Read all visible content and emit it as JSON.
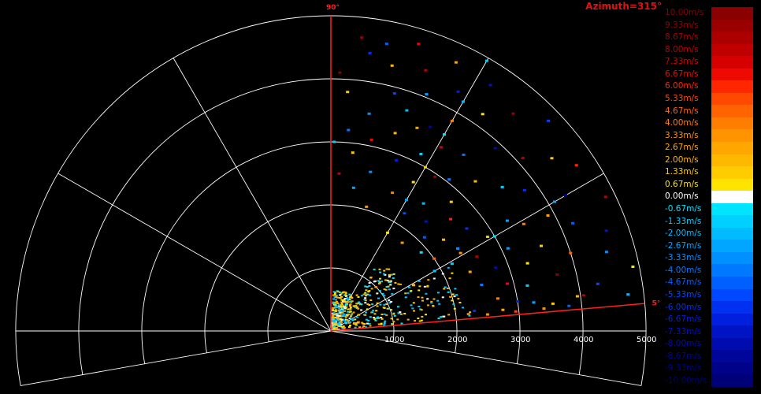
{
  "title": "Azimuth=315°",
  "chart_data": {
    "type": "polar-scatter",
    "quantity": "radial velocity",
    "range_ticks": [
      1000,
      2000,
      3000,
      4000,
      5000
    ],
    "range_max": 5000,
    "angle_marks": [
      {
        "angle": 90,
        "label": "90°"
      },
      {
        "angle": 5,
        "label": "5°"
      }
    ],
    "sector_deg": [
      5,
      90
    ],
    "colorbar": [
      {
        "label": "10.00m/s",
        "value": 10.0,
        "color": "#8b0000"
      },
      {
        "label": "9.33m/s",
        "value": 9.33,
        "color": "#9b0000"
      },
      {
        "label": "8.67m/s",
        "value": 8.67,
        "color": "#ac0000"
      },
      {
        "label": "8.00m/s",
        "value": 8.0,
        "color": "#c00000"
      },
      {
        "label": "7.33m/s",
        "value": 7.33,
        "color": "#d70000"
      },
      {
        "label": "6.67m/s",
        "value": 6.67,
        "color": "#ee0a00"
      },
      {
        "label": "6.00m/s",
        "value": 6.0,
        "color": "#ff2600"
      },
      {
        "label": "5.33m/s",
        "value": 5.33,
        "color": "#ff4800"
      },
      {
        "label": "4.67m/s",
        "value": 4.67,
        "color": "#ff6400"
      },
      {
        "label": "4.00m/s",
        "value": 4.0,
        "color": "#ff7e00"
      },
      {
        "label": "3.33m/s",
        "value": 3.33,
        "color": "#ff9400"
      },
      {
        "label": "2.67m/s",
        "value": 2.67,
        "color": "#ffa600"
      },
      {
        "label": "2.00m/s",
        "value": 2.0,
        "color": "#ffb800"
      },
      {
        "label": "1.33m/s",
        "value": 1.33,
        "color": "#ffcc00"
      },
      {
        "label": "0.67m/s",
        "value": 0.67,
        "color": "#ffe400"
      },
      {
        "label": "0.00m/s",
        "value": 0.0,
        "color": "#ffffff"
      },
      {
        "label": "-0.67m/s",
        "value": -0.67,
        "color": "#00e4ff"
      },
      {
        "label": "-1.33m/s",
        "value": -1.33,
        "color": "#00d0ff"
      },
      {
        "label": "-2.00m/s",
        "value": -2.0,
        "color": "#00bcff"
      },
      {
        "label": "-2.67m/s",
        "value": -2.67,
        "color": "#00a6ff"
      },
      {
        "label": "-3.33m/s",
        "value": -3.33,
        "color": "#0090ff"
      },
      {
        "label": "-4.00m/s",
        "value": -4.0,
        "color": "#0078ff"
      },
      {
        "label": "-4.67m/s",
        "value": -4.67,
        "color": "#0060ff"
      },
      {
        "label": "-5.33m/s",
        "value": -5.33,
        "color": "#0048ff"
      },
      {
        "label": "-6.00m/s",
        "value": -6.0,
        "color": "#0030f0"
      },
      {
        "label": "-6.67m/s",
        "value": -6.67,
        "color": "#0020dd"
      },
      {
        "label": "-7.33m/s",
        "value": -7.33,
        "color": "#0014c4"
      },
      {
        "label": "-8.00m/s",
        "value": -8.0,
        "color": "#000cad"
      },
      {
        "label": "-8.67m/s",
        "value": -8.67,
        "color": "#000699"
      },
      {
        "label": "-9.33m/s",
        "value": -9.33,
        "color": "#000388"
      },
      {
        "label": "-10.00m/s",
        "value": -10.0,
        "color": "#000078"
      }
    ],
    "points": [
      {
        "az": 84,
        "r": 4680,
        "v": 9.3
      },
      {
        "az": 82,
        "r": 4450,
        "v": -6.0
      },
      {
        "az": 79,
        "r": 4640,
        "v": -4.7
      },
      {
        "az": 77,
        "r": 4320,
        "v": 2.0
      },
      {
        "az": 73,
        "r": 4760,
        "v": 6.7
      },
      {
        "az": 75,
        "r": 3900,
        "v": -5.3
      },
      {
        "az": 70,
        "r": 4400,
        "v": 8.0
      },
      {
        "az": 68,
        "r": 4050,
        "v": -2.7
      },
      {
        "az": 86,
        "r": 3800,
        "v": 1.3
      },
      {
        "az": 88,
        "r": 4100,
        "v": 10.0
      },
      {
        "az": 80,
        "r": 3500,
        "v": -3.3
      },
      {
        "az": 65,
        "r": 4700,
        "v": 2.7
      },
      {
        "az": 62,
        "r": 4300,
        "v": -6.7
      },
      {
        "az": 60,
        "r": 3850,
        "v": 4.0
      },
      {
        "az": 57,
        "r": 4650,
        "v": -7.3
      },
      {
        "az": 55,
        "r": 4200,
        "v": 0.7
      },
      {
        "az": 53,
        "r": 3500,
        "v": -4.0
      },
      {
        "az": 50,
        "r": 4500,
        "v": 9.3
      },
      {
        "az": 48,
        "r": 3900,
        "v": -8.0
      },
      {
        "az": 46,
        "r": 3300,
        "v": 2.0
      },
      {
        "az": 44,
        "r": 4800,
        "v": -5.3
      },
      {
        "az": 42,
        "r": 4100,
        "v": 8.7
      },
      {
        "az": 40,
        "r": 3550,
        "v": -1.3
      },
      {
        "az": 38,
        "r": 4450,
        "v": 1.3
      },
      {
        "az": 36,
        "r": 3800,
        "v": -6.0
      },
      {
        "az": 34,
        "r": 4700,
        "v": 6.0
      },
      {
        "az": 32,
        "r": 3300,
        "v": -2.7
      },
      {
        "az": 30,
        "r": 4300,
        "v": -8.7
      },
      {
        "az": 28,
        "r": 3900,
        "v": 2.7
      },
      {
        "az": 26,
        "r": 4850,
        "v": 8.0
      },
      {
        "az": 24,
        "r": 4200,
        "v": -4.7
      },
      {
        "az": 22,
        "r": 3600,
        "v": 1.3
      },
      {
        "az": 20,
        "r": 4650,
        "v": -7.3
      },
      {
        "az": 18,
        "r": 4000,
        "v": 4.7
      },
      {
        "az": 16,
        "r": 4550,
        "v": -3.3
      },
      {
        "az": 14,
        "r": 3700,
        "v": 10.0
      },
      {
        "az": 12,
        "r": 4900,
        "v": 0.7
      },
      {
        "az": 10,
        "r": 4300,
        "v": -5.3
      },
      {
        "az": 8,
        "r": 3950,
        "v": 2.0
      },
      {
        "az": 7,
        "r": 4750,
        "v": -2.0
      },
      {
        "az": 6,
        "r": 3400,
        "v": 3.3
      },
      {
        "az": 9,
        "r": 3000,
        "v": -6.7
      },
      {
        "az": 11,
        "r": 2700,
        "v": 4.0
      },
      {
        "az": 13,
        "r": 3200,
        "v": -1.3
      },
      {
        "az": 15,
        "r": 2900,
        "v": 6.7
      },
      {
        "az": 17,
        "r": 2500,
        "v": -4.0
      },
      {
        "az": 19,
        "r": 3300,
        "v": 0.7
      },
      {
        "az": 21,
        "r": 2800,
        "v": -8.0
      },
      {
        "az": 23,
        "r": 2400,
        "v": 2.7
      },
      {
        "az": 25,
        "r": 3100,
        "v": -2.7
      },
      {
        "az": 27,
        "r": 2600,
        "v": 8.7
      },
      {
        "az": 29,
        "r": 2200,
        "v": -1.3
      },
      {
        "az": 31,
        "r": 2900,
        "v": 1.3
      },
      {
        "az": 33,
        "r": 2400,
        "v": -3.3
      },
      {
        "az": 35,
        "r": 2000,
        "v": 4.7
      },
      {
        "az": 37,
        "r": 2700,
        "v": -6.0
      },
      {
        "az": 39,
        "r": 2300,
        "v": 2.0
      },
      {
        "az": 41,
        "r": 1900,
        "v": -0.7
      },
      {
        "az": 43,
        "r": 2600,
        "v": 6.0
      },
      {
        "az": 45,
        "r": 2100,
        "v": -4.7
      },
      {
        "az": 47,
        "r": 2800,
        "v": 1.3
      },
      {
        "az": 49,
        "r": 2300,
        "v": -7.3
      },
      {
        "az": 51,
        "r": 1800,
        "v": 3.3
      },
      {
        "az": 54,
        "r": 2500,
        "v": -2.0
      },
      {
        "az": 56,
        "r": 2950,
        "v": 9.3
      },
      {
        "az": 58,
        "r": 2200,
        "v": -5.3
      },
      {
        "az": 61,
        "r": 2700,
        "v": 0.7
      },
      {
        "az": 63,
        "r": 3150,
        "v": -1.3
      },
      {
        "az": 66,
        "r": 2400,
        "v": 4.0
      },
      {
        "az": 69,
        "r": 2900,
        "v": -6.7
      },
      {
        "az": 72,
        "r": 3300,
        "v": 2.0
      },
      {
        "az": 76,
        "r": 2600,
        "v": -3.3
      },
      {
        "az": 78,
        "r": 3100,
        "v": 6.7
      },
      {
        "az": 81,
        "r": 2300,
        "v": -2.7
      },
      {
        "az": 83,
        "r": 2850,
        "v": 1.3
      },
      {
        "az": 85,
        "r": 3200,
        "v": -4.0
      },
      {
        "az": 87,
        "r": 2500,
        "v": 8.0
      },
      {
        "az": 89,
        "r": 3000,
        "v": -1.3
      },
      {
        "az": 71,
        "r": 3700,
        "v": -2.0
      },
      {
        "az": 67,
        "r": 3500,
        "v": 2.7
      },
      {
        "az": 64,
        "r": 3600,
        "v": -8.7
      },
      {
        "az": 59,
        "r": 3400,
        "v": 7.3
      },
      {
        "az": 52,
        "r": 3050,
        "v": -4.0
      },
      {
        "az": 74,
        "r": 2050,
        "v": 3.3
      },
      {
        "az": 60,
        "r": 4950,
        "v": -1.3
      },
      {
        "az": 60,
        "r": 4200,
        "v": -2.0
      },
      {
        "az": 60,
        "r": 3600,
        "v": -0.7
      },
      {
        "az": 60,
        "r": 3000,
        "v": 1.3
      },
      {
        "az": 60,
        "r": 2400,
        "v": -2.7
      },
      {
        "az": 60,
        "r": 1800,
        "v": 0.7
      },
      {
        "az": 29,
        "r": 1500,
        "v": 2.0
      },
      {
        "az": 30,
        "r": 1900,
        "v": -1.3
      },
      {
        "az": 31,
        "r": 2400,
        "v": 3.3
      },
      {
        "az": 30,
        "r": 3000,
        "v": -0.7
      },
      {
        "az": 29,
        "r": 3500,
        "v": 4.0
      },
      {
        "az": 30,
        "r": 4100,
        "v": -2.0
      },
      {
        "az": 7,
        "r": 2200,
        "v": 4.0
      },
      {
        "az": 6,
        "r": 2500,
        "v": 3.3
      },
      {
        "az": 8,
        "r": 2300,
        "v": -6.0
      },
      {
        "az": 7,
        "r": 2750,
        "v": 2.7
      },
      {
        "az": 6,
        "r": 2950,
        "v": 5.3
      },
      {
        "az": 8,
        "r": 3250,
        "v": -2.7
      },
      {
        "az": 7,
        "r": 3550,
        "v": 1.3
      },
      {
        "az": 6,
        "r": 3800,
        "v": -4.7
      },
      {
        "az": 8,
        "r": 4050,
        "v": 8.0
      }
    ]
  }
}
